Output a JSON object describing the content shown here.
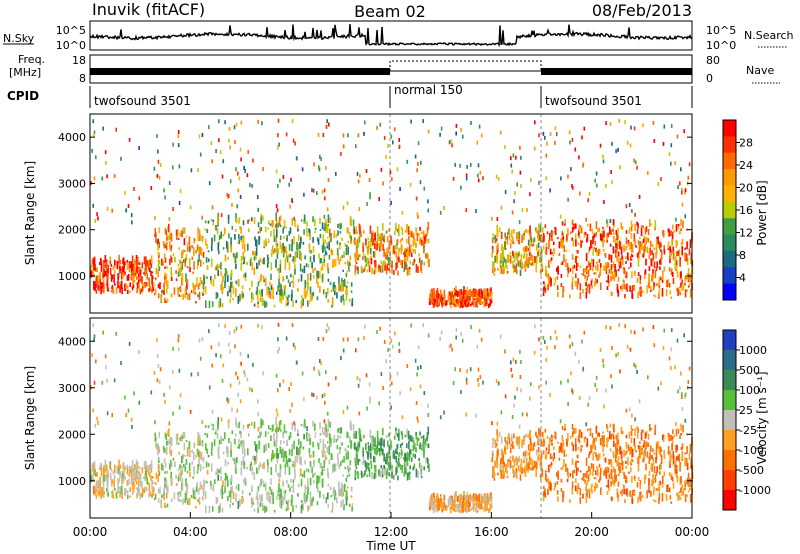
{
  "header": {
    "station": "Inuvik (fitACF)",
    "beam": "Beam 02",
    "date": "08/Feb/2013"
  },
  "nsky": {
    "label": "N.Sky",
    "ticks": [
      "10^5",
      "10^0"
    ],
    "right_ticks": [
      "10^5",
      "10^0"
    ],
    "right_label": "N.Search"
  },
  "freq": {
    "label_line1": "Freq.",
    "label_line2": "[MHz]",
    "ticks": [
      "18",
      "8"
    ],
    "right_ticks": [
      "80",
      "0"
    ],
    "right_label": "Nave"
  },
  "cpid": {
    "label": "CPID",
    "segments": [
      {
        "name": "twofsound 3501",
        "start_hour": 0,
        "end_hour": 12
      },
      {
        "name": "normal 150",
        "start_hour": 12,
        "end_hour": 18
      },
      {
        "name": "twofsound 3501",
        "start_hour": 18,
        "end_hour": 24
      }
    ]
  },
  "axes": {
    "ylabel": "Slant Range [km]",
    "xlabel": "Time UT",
    "yticks": [
      1000,
      2000,
      3000,
      4000
    ],
    "xticks": [
      "00:00",
      "04:00",
      "08:00",
      "12:00",
      "16:00",
      "20:00",
      "00:00"
    ]
  },
  "power_colorbar": {
    "label": "Power [dB]",
    "ticks": [
      "28",
      "24",
      "20",
      "16",
      "12",
      "8",
      "4"
    ],
    "colors": [
      "#ff0000",
      "#ff3000",
      "#ff6a00",
      "#ff9900",
      "#ffb000",
      "#b8cc00",
      "#40a040",
      "#2a8a60",
      "#1a6a80",
      "#1640c0",
      "#0000ff"
    ]
  },
  "velocity_colorbar": {
    "label": "Velocity [m s⁻¹]",
    "ticks": [
      "1000",
      "500",
      "100",
      "25",
      "-25",
      "-100",
      "-500",
      "-1000"
    ],
    "colors": [
      "#2040c0",
      "#2e6c8c",
      "#3a8a5a",
      "#56c03a",
      "#c0c0b8",
      "#ffa020",
      "#ff7000",
      "#ff4000",
      "#ff0000"
    ]
  },
  "chart_data": {
    "type": "heatmap",
    "title": "Inuvik (fitACF) Beam 02 08/Feb/2013",
    "xlabel": "Time UT",
    "ylabel": "Slant Range [km]",
    "xlim": [
      0,
      24
    ],
    "ylim": [
      200,
      4500
    ],
    "panels": [
      {
        "name": "Power [dB]",
        "clim": [
          0,
          30
        ]
      },
      {
        "name": "Velocity [m s⁻¹]",
        "clim": [
          -1000,
          1000
        ]
      }
    ],
    "scatter_regions": [
      {
        "hours": [
          0,
          2.5
        ],
        "range_km": [
          600,
          1300
        ],
        "power_db": 26,
        "velocity": -100
      },
      {
        "hours": [
          2.5,
          4.5
        ],
        "range_km": [
          400,
          2000
        ],
        "power_db": 20,
        "velocity": 0
      },
      {
        "hours": [
          4.5,
          10.5
        ],
        "range_km": [
          300,
          2200
        ],
        "power_db": 14,
        "velocity": 100
      },
      {
        "hours": [
          10.5,
          13.5
        ],
        "range_km": [
          1000,
          2000
        ],
        "power_db": 20,
        "velocity": 300
      },
      {
        "hours": [
          13.5,
          16
        ],
        "range_km": [
          300,
          600
        ],
        "power_db": 26,
        "velocity": -200
      },
      {
        "hours": [
          16,
          18
        ],
        "range_km": [
          1000,
          2000
        ],
        "power_db": 18,
        "velocity": -300
      },
      {
        "hours": [
          18,
          24
        ],
        "range_km": [
          500,
          2100
        ],
        "power_db": 24,
        "velocity": -400
      }
    ]
  }
}
